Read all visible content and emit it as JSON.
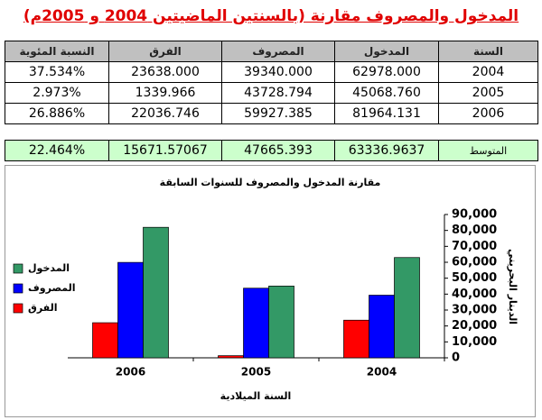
{
  "header": {
    "title": "المدخول والمصروف مقارنة (بالسنتين الماضيتين 2004 و 2005م)"
  },
  "table": {
    "headers": [
      "السنة",
      "المدخول",
      "المصروف",
      "الفرق",
      "النسبة المئوية"
    ],
    "rows": [
      [
        "2004",
        "62978.000",
        "39340.000",
        "23638.000",
        "37.534%"
      ],
      [
        "2005",
        "45068.760",
        "43728.794",
        "1339.966",
        "2.973%"
      ],
      [
        "2006",
        "81964.131",
        "59927.385",
        "22036.746",
        "26.886%"
      ]
    ]
  },
  "average": [
    "المتوسط",
    "63336.9637",
    "47665.393",
    "15671.57067",
    "22.464%"
  ],
  "chart_data": {
    "type": "bar",
    "title": "مقارنة المدخول والمصروف للسنوات السابقة",
    "x_label": "السنة الميلادية",
    "y_label": "الدينار البحريني",
    "categories": [
      "2006",
      "2005",
      "2004"
    ],
    "series": [
      {
        "name": "الفرق",
        "color": "#ff0000",
        "values": [
          22036.746,
          1339.966,
          23638.0
        ]
      },
      {
        "name": "المصروف",
        "color": "#0000ff",
        "values": [
          59927.385,
          43728.794,
          39340.0
        ]
      },
      {
        "name": "المدخول",
        "color": "#339966",
        "values": [
          81964.131,
          45068.76,
          62978.0
        ]
      }
    ],
    "ylim": [
      0,
      90000
    ],
    "yticks": [
      0,
      {
        "value": 10000,
        "label": "10,000"
      },
      {
        "value": 20000,
        "label": "20,000"
      },
      {
        "value": 30000,
        "label": "30,000"
      },
      {
        "value": 40000,
        "label": "40,000"
      },
      {
        "value": 50000,
        "label": "50,000"
      },
      {
        "value": 60000,
        "label": "60,000"
      },
      {
        "value": 70000,
        "label": "70,000"
      },
      {
        "value": 80000,
        "label": "80,000"
      },
      {
        "value": 90000,
        "label": "90,000"
      }
    ],
    "y_axis_side": "right",
    "legend": "left",
    "grid": false
  }
}
